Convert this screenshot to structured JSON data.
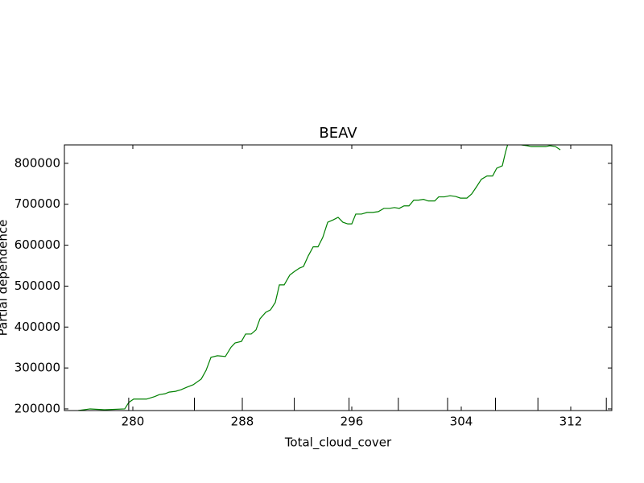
{
  "chart_data": {
    "type": "line",
    "title": "BEAV",
    "x_label": "Total_cloud_cover",
    "y_label": "Partial dependence",
    "x": [
      276.0,
      276.88,
      277.94,
      279.41,
      279.71,
      280.06,
      281.0,
      281.59,
      281.94,
      282.35,
      282.65,
      283.12,
      283.53,
      283.94,
      284.41,
      285.0,
      285.35,
      285.71,
      286.18,
      286.76,
      287.18,
      287.47,
      287.94,
      288.24,
      288.65,
      289.0,
      289.29,
      289.71,
      290.06,
      290.41,
      290.71,
      291.06,
      291.47,
      291.82,
      292.18,
      292.47,
      292.82,
      293.18,
      293.53,
      293.88,
      294.24,
      294.65,
      295.0,
      295.35,
      295.71,
      296.0,
      296.29,
      296.71,
      297.12,
      297.53,
      297.94,
      298.35,
      298.76,
      299.12,
      299.47,
      299.82,
      300.18,
      300.53,
      300.88,
      301.24,
      301.59,
      302.06,
      302.35,
      302.76,
      303.18,
      303.59,
      303.94,
      304.41,
      304.76,
      305.12,
      305.47,
      305.88,
      306.29,
      306.59,
      307.0,
      307.24,
      307.47,
      307.94,
      308.41,
      308.82,
      309.12,
      309.71,
      310.18,
      310.47,
      310.88,
      311.24
    ],
    "series": [
      {
        "color": "#008000",
        "values": [
          196000,
          200000,
          198000,
          200000,
          216000,
          224000,
          224000,
          230000,
          235000,
          237000,
          241000,
          243000,
          247000,
          253000,
          259000,
          273000,
          294000,
          326000,
          330000,
          328000,
          351000,
          361000,
          365000,
          383000,
          383000,
          393000,
          420000,
          436000,
          442000,
          460000,
          503000,
          503000,
          527000,
          536000,
          544000,
          548000,
          574000,
          596000,
          596000,
          619000,
          656000,
          662000,
          668000,
          656000,
          652000,
          652000,
          676000,
          676000,
          680000,
          680000,
          682000,
          690000,
          690000,
          692000,
          690000,
          696000,
          696000,
          710000,
          710000,
          712000,
          708000,
          708000,
          718000,
          718000,
          721000,
          719000,
          715000,
          715000,
          725000,
          743000,
          761000,
          769000,
          769000,
          788000,
          794000,
          828000,
          855000,
          851000,
          845000,
          843000,
          841000,
          841000,
          841000,
          843000,
          841000,
          833000
        ]
      }
    ],
    "deciles": [
      279.7,
      284.5,
      288.0,
      291.8,
      295.8,
      299.4,
      303.0,
      306.5,
      309.6,
      314.6
    ],
    "xlim": [
      275,
      315
    ],
    "xticks": [
      280,
      288,
      296,
      304,
      312
    ],
    "ylim": [
      196000,
      845000
    ],
    "yticks": [
      200000,
      300000,
      400000,
      500000,
      600000,
      700000,
      800000
    ]
  }
}
